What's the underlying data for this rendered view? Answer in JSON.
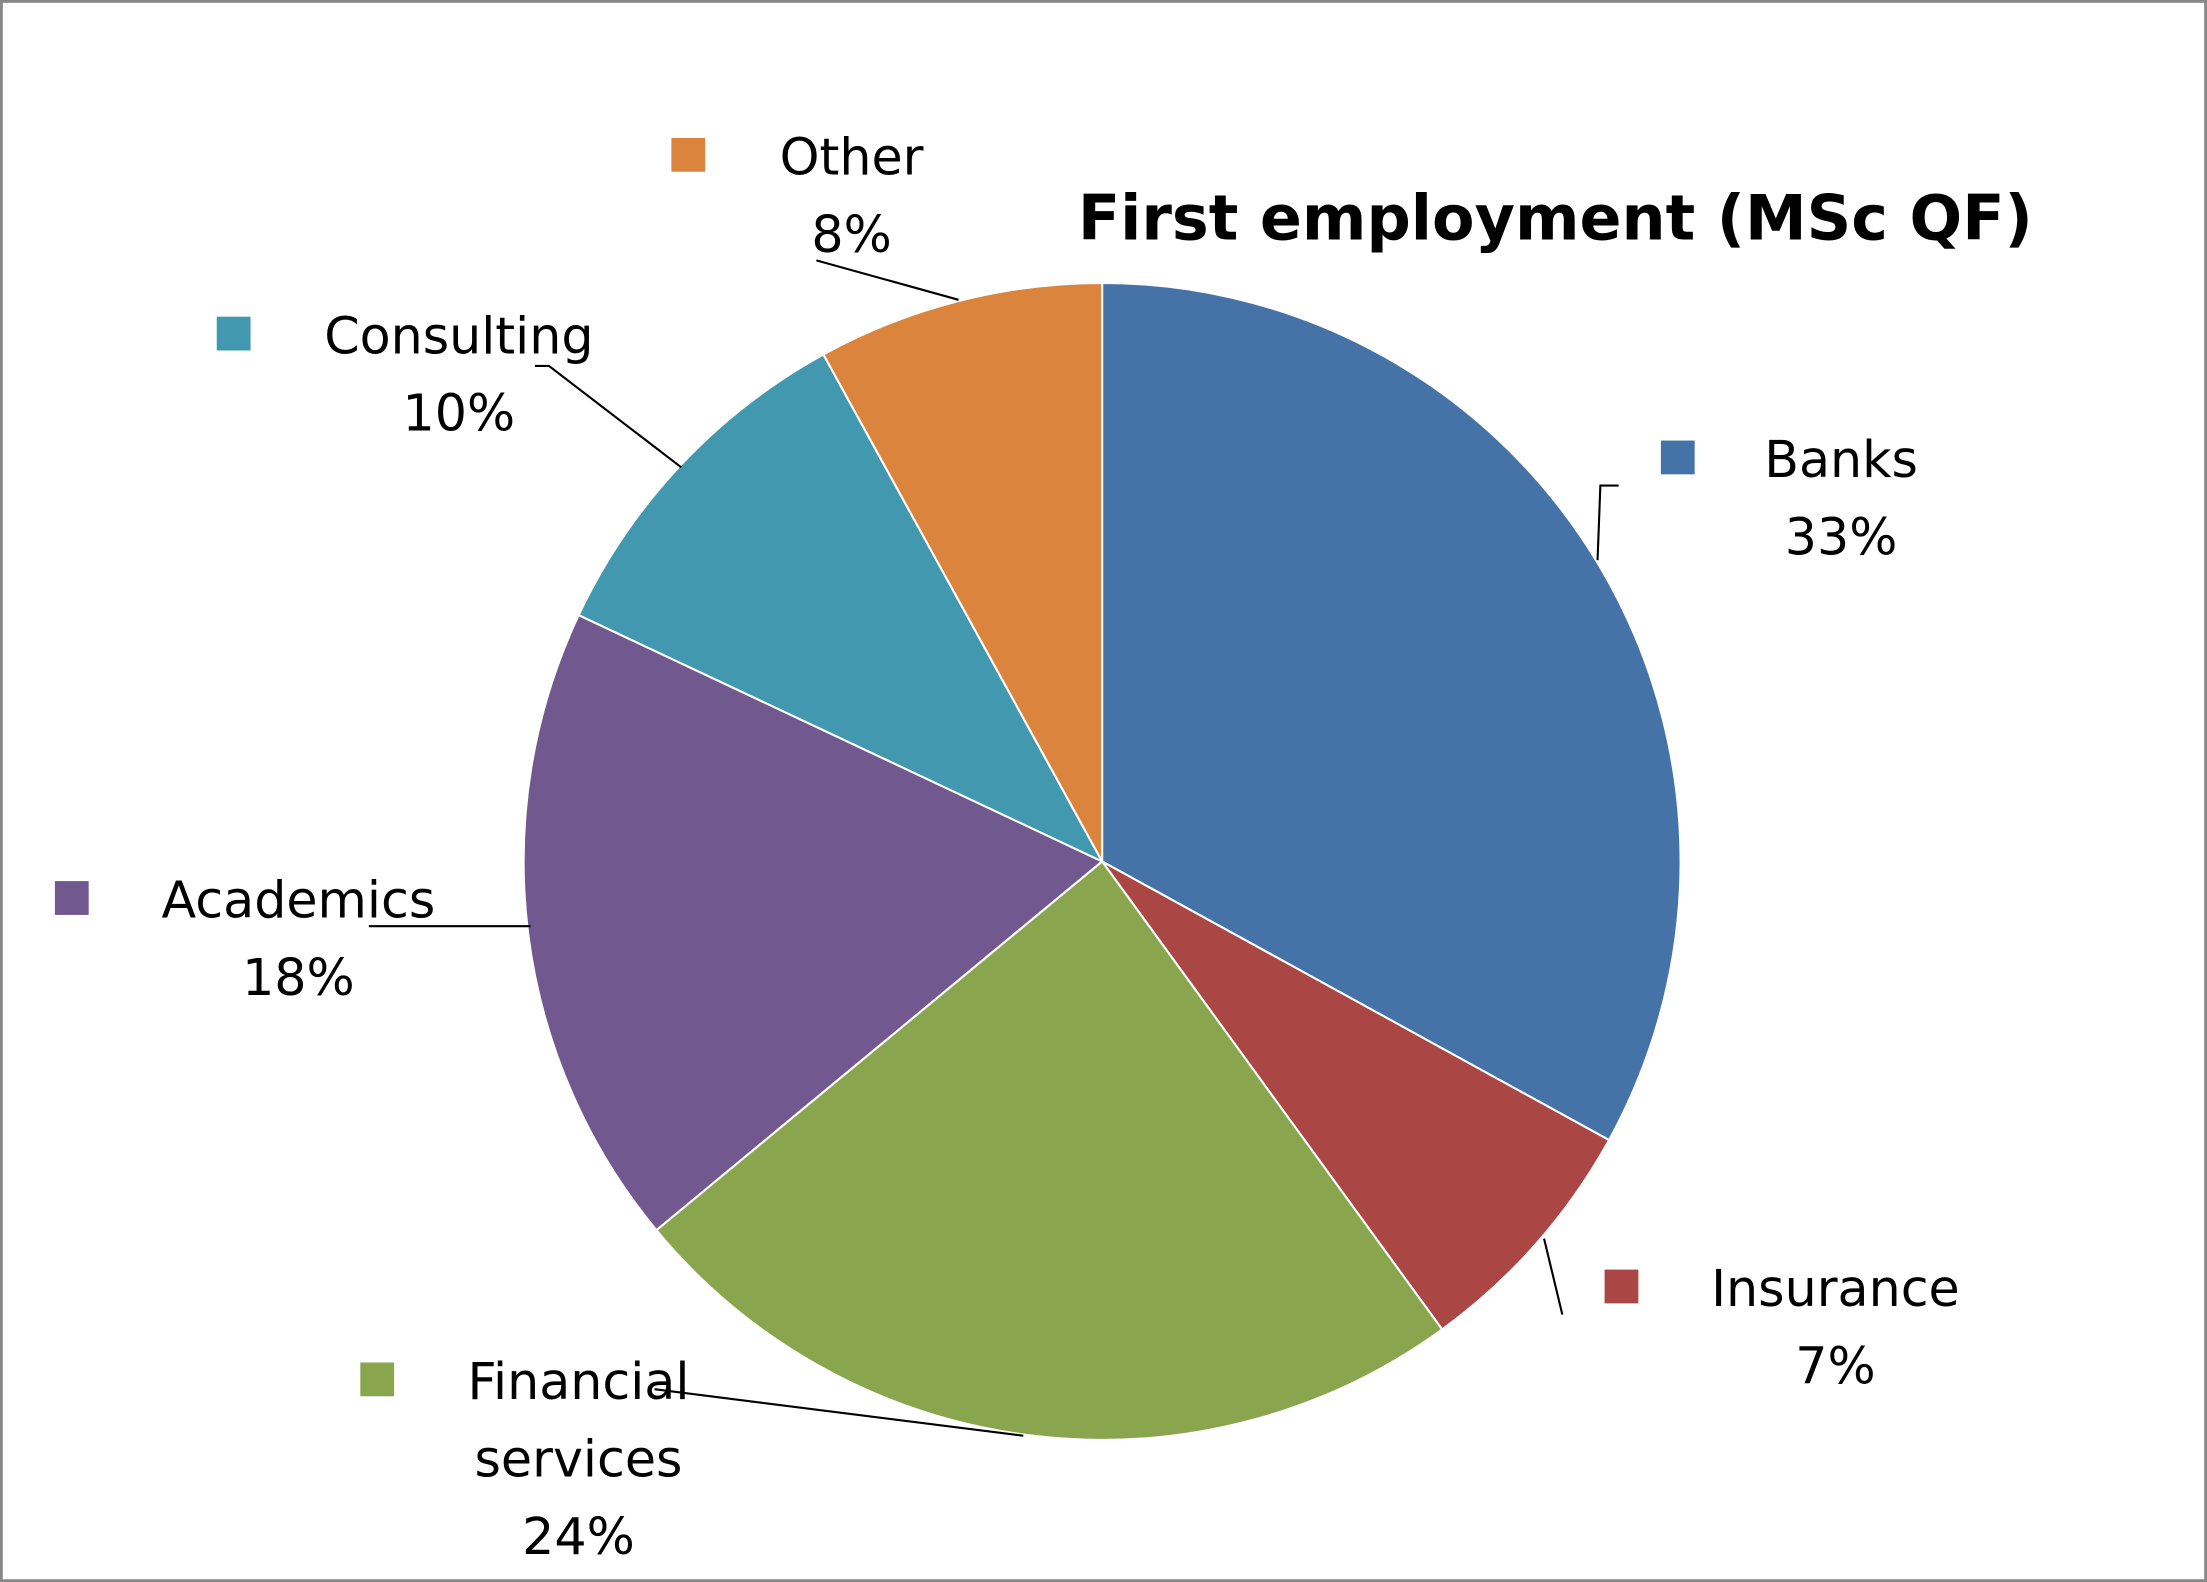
{
  "chart_data": {
    "type": "pie",
    "title": "First employment (MSc QF)",
    "categories": [
      "Banks",
      "Insurance",
      "Financial services",
      "Academics",
      "Consulting",
      "Other"
    ],
    "values": [
      33,
      7,
      24,
      18,
      10,
      8
    ],
    "value_labels": [
      "33%",
      "7%",
      "24%",
      "18%",
      "10%",
      "8%"
    ],
    "colors": [
      "#4572a7",
      "#aa4643",
      "#89a54e",
      "#71588f",
      "#4198af",
      "#db843d"
    ]
  }
}
